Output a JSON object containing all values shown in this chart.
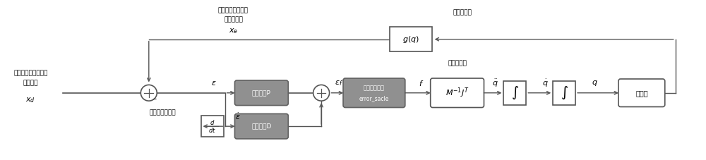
{
  "bg_color": "#ffffff",
  "line_color": "#555555",
  "box_gray_fill": "#909090",
  "box_white_fill": "#ffffff",
  "box_gray_stroke": "#606060",
  "text_color": "#000000",
  "labels": {
    "input_line1": "笛卡尔空间运动目标",
    "input_line2": "输入位姿",
    "xd": "$x_d$",
    "feedback_line1": "机械臂末端执行器",
    "feedback_line2": "笛卡尔位姿",
    "xe": "$x_e$",
    "error_label": "笛卡尔位姿误差",
    "forward_kin": "正向运动学",
    "dynamics_label": "动力学模型",
    "epsilon": "$\\varepsilon$",
    "epsilon_dot": "$\\dot{\\varepsilon}$",
    "epsilon_f": "$\\varepsilon_f$",
    "f_label": "$f$",
    "ddq": "$\\ddot{q}$",
    "dq": "$\\dot{q}$",
    "q": "$q$",
    "gain_p": "增益系数P",
    "gain_d": "增益系数D",
    "error_scale_line1": "误差缩放系数",
    "error_scale_line2": "error_sacle",
    "dynamics_box": "$M^{-1}J^T$",
    "integrator1": "$\\int$",
    "integrator2": "$\\int$",
    "robot": "机械臂",
    "gq": "$g(q)$",
    "ddt_top": "$d$",
    "ddt_bot": "$dt$"
  },
  "y_main": 0.42,
  "figw": 10.0,
  "figh": 2.27,
  "xlim": [
    0,
    10
  ],
  "ylim": [
    0,
    2.27
  ]
}
